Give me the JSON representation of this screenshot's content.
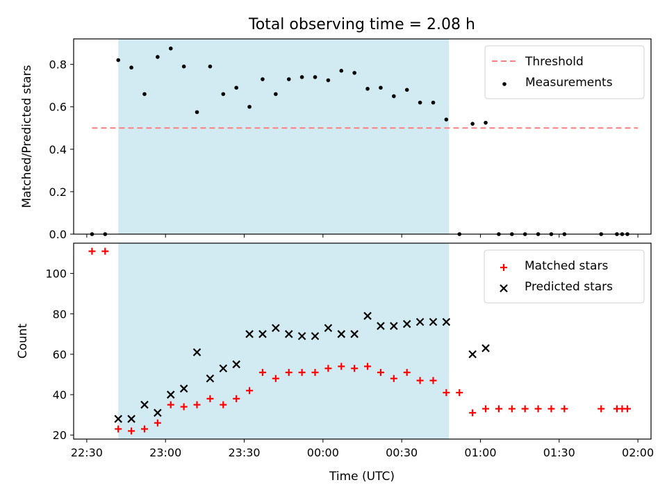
{
  "title": "Total observing time = 2.08 h",
  "xlabel": "Time (UTC)",
  "xticks": [
    "22:30",
    "23:00",
    "23:30",
    "00:00",
    "00:30",
    "01:00",
    "01:30",
    "02:00"
  ],
  "colors": {
    "threshold": "#ff7f7f",
    "shade": "#add8e6",
    "matched": "#ff0000",
    "predicted": "#000000",
    "measure": "#000000"
  },
  "chart_data": [
    {
      "type": "scatter",
      "ylabel": "Matched/Predicted stars",
      "ylim": [
        0,
        0.92
      ],
      "yticks": [
        "0.0",
        "0.2",
        "0.4",
        "0.6",
        "0.8"
      ],
      "shaded_interval": [
        "22:42",
        "00:48"
      ],
      "threshold": {
        "name": "Threshold",
        "y": 0.5,
        "x_range": [
          "22:32",
          "02:00"
        ]
      },
      "legend_placement": "top-right",
      "series": [
        {
          "name": "Measurements",
          "points": [
            [
              "22:32",
              0.0
            ],
            [
              "22:37",
              0.0
            ],
            [
              "22:42",
              0.82
            ],
            [
              "22:47",
              0.785
            ],
            [
              "22:52",
              0.66
            ],
            [
              "22:57",
              0.835
            ],
            [
              "23:02",
              0.875
            ],
            [
              "23:07",
              0.79
            ],
            [
              "23:12",
              0.575
            ],
            [
              "23:17",
              0.79
            ],
            [
              "23:22",
              0.66
            ],
            [
              "23:27",
              0.69
            ],
            [
              "23:32",
              0.6
            ],
            [
              "23:37",
              0.73
            ],
            [
              "23:42",
              0.66
            ],
            [
              "23:47",
              0.73
            ],
            [
              "23:52",
              0.74
            ],
            [
              "23:57",
              0.74
            ],
            [
              "00:02",
              0.725
            ],
            [
              "00:07",
              0.77
            ],
            [
              "00:12",
              0.76
            ],
            [
              "00:17",
              0.685
            ],
            [
              "00:22",
              0.69
            ],
            [
              "00:27",
              0.65
            ],
            [
              "00:32",
              0.68
            ],
            [
              "00:37",
              0.62
            ],
            [
              "00:42",
              0.62
            ],
            [
              "00:47",
              0.54
            ],
            [
              "00:52",
              0.0
            ],
            [
              "00:57",
              0.52
            ],
            [
              "01:02",
              0.525
            ],
            [
              "01:07",
              0.0
            ],
            [
              "01:12",
              0.0
            ],
            [
              "01:17",
              0.0
            ],
            [
              "01:22",
              0.0
            ],
            [
              "01:27",
              0.0
            ],
            [
              "01:32",
              0.0
            ],
            [
              "01:46",
              0.0
            ],
            [
              "01:52",
              0.0
            ],
            [
              "01:54",
              0.0
            ],
            [
              "01:56",
              0.0
            ]
          ]
        }
      ]
    },
    {
      "type": "scatter",
      "ylabel": "Count",
      "ylim": [
        18,
        115
      ],
      "yticks": [
        "20",
        "40",
        "60",
        "80",
        "100"
      ],
      "shaded_interval": [
        "22:42",
        "00:48"
      ],
      "legend_placement": "top-right",
      "series": [
        {
          "name": "Matched stars",
          "points": [
            [
              "22:32",
              111
            ],
            [
              "22:37",
              111
            ],
            [
              "22:42",
              23
            ],
            [
              "22:47",
              22
            ],
            [
              "22:52",
              23
            ],
            [
              "22:57",
              26
            ],
            [
              "23:02",
              35
            ],
            [
              "23:07",
              34
            ],
            [
              "23:12",
              35
            ],
            [
              "23:17",
              38
            ],
            [
              "23:22",
              35
            ],
            [
              "23:27",
              38
            ],
            [
              "23:32",
              42
            ],
            [
              "23:37",
              51
            ],
            [
              "23:42",
              48
            ],
            [
              "23:47",
              51
            ],
            [
              "23:52",
              51
            ],
            [
              "23:57",
              51
            ],
            [
              "00:02",
              53
            ],
            [
              "00:07",
              54
            ],
            [
              "00:12",
              53
            ],
            [
              "00:17",
              54
            ],
            [
              "00:22",
              51
            ],
            [
              "00:27",
              48
            ],
            [
              "00:32",
              51
            ],
            [
              "00:37",
              47
            ],
            [
              "00:42",
              47
            ],
            [
              "00:47",
              41
            ],
            [
              "00:52",
              41
            ],
            [
              "00:57",
              31
            ],
            [
              "01:02",
              33
            ],
            [
              "01:07",
              33
            ],
            [
              "01:12",
              33
            ],
            [
              "01:17",
              33
            ],
            [
              "01:22",
              33
            ],
            [
              "01:27",
              33
            ],
            [
              "01:32",
              33
            ],
            [
              "01:46",
              33
            ],
            [
              "01:52",
              33
            ],
            [
              "01:54",
              33
            ],
            [
              "01:56",
              33
            ]
          ]
        },
        {
          "name": "Predicted stars",
          "points": [
            [
              "22:42",
              28
            ],
            [
              "22:47",
              28
            ],
            [
              "22:52",
              35
            ],
            [
              "22:57",
              31
            ],
            [
              "23:02",
              40
            ],
            [
              "23:07",
              43
            ],
            [
              "23:12",
              61
            ],
            [
              "23:17",
              48
            ],
            [
              "23:22",
              53
            ],
            [
              "23:27",
              55
            ],
            [
              "23:32",
              70
            ],
            [
              "23:37",
              70
            ],
            [
              "23:42",
              73
            ],
            [
              "23:47",
              70
            ],
            [
              "23:52",
              69
            ],
            [
              "23:57",
              69
            ],
            [
              "00:02",
              73
            ],
            [
              "00:07",
              70
            ],
            [
              "00:12",
              70
            ],
            [
              "00:17",
              79
            ],
            [
              "00:22",
              74
            ],
            [
              "00:27",
              74
            ],
            [
              "00:32",
              75
            ],
            [
              "00:37",
              76
            ],
            [
              "00:42",
              76
            ],
            [
              "00:47",
              76
            ],
            [
              "00:57",
              60
            ],
            [
              "01:02",
              63
            ]
          ]
        }
      ]
    }
  ]
}
